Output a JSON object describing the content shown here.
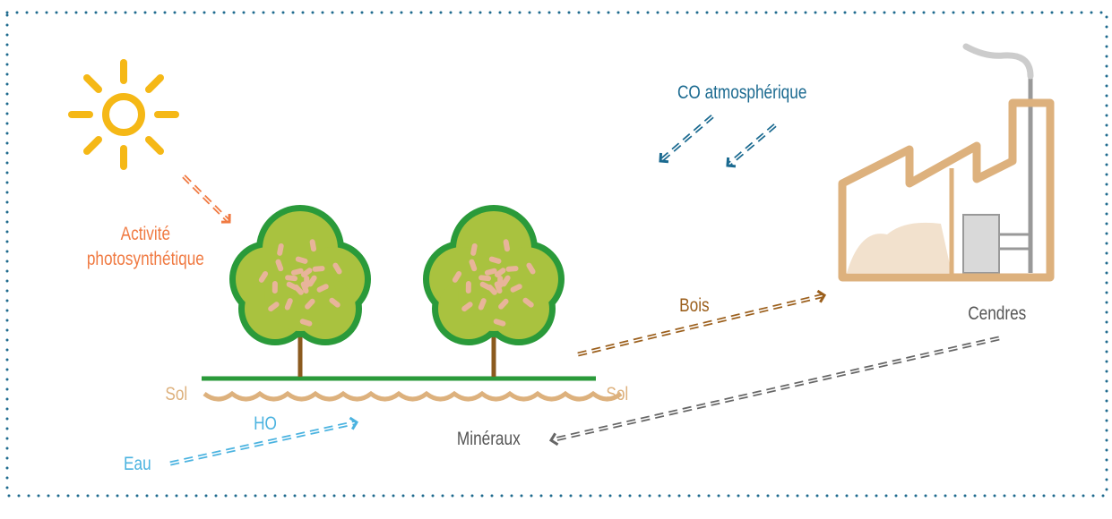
{
  "labels": {
    "co2": "CO atmosphérique",
    "photosynthesis": [
      "Activité",
      "photosynthétique"
    ],
    "wood": "Bois",
    "ashes": "Cendres",
    "soil_left": "Sol",
    "soil_right": "Sol",
    "water_vapor": "HO",
    "water": "Eau",
    "minerals": "Minéraux"
  }
}
